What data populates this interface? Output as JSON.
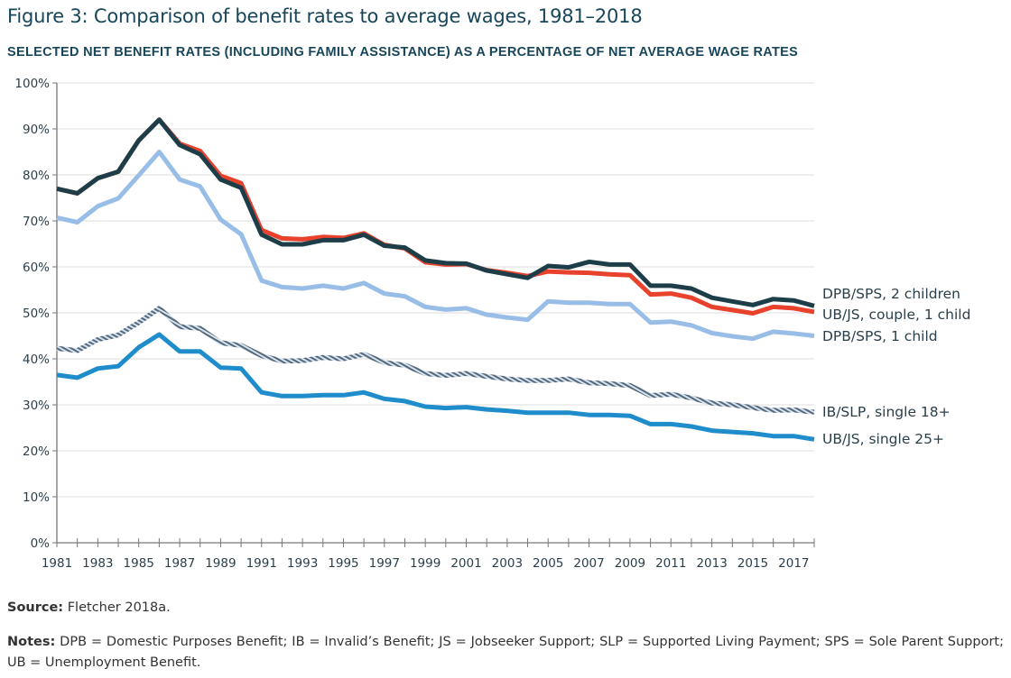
{
  "chart_data": {
    "type": "line",
    "title": "Figure 3: Comparison of benefit rates to average wages, 1981–2018",
    "subtitle": "SELECTED NET BENEFIT RATES (INCLUDING FAMILY ASSISTANCE) AS A PERCENTAGE OF NET AVERAGE WAGE RATES",
    "xlabel": "",
    "ylabel": "",
    "x": [
      1981,
      1982,
      1983,
      1984,
      1985,
      1986,
      1987,
      1988,
      1989,
      1990,
      1991,
      1992,
      1993,
      1994,
      1995,
      1996,
      1997,
      1998,
      1999,
      2000,
      2001,
      2002,
      2003,
      2004,
      2005,
      2006,
      2007,
      2008,
      2009,
      2010,
      2011,
      2012,
      2013,
      2014,
      2015,
      2016,
      2017,
      2018
    ],
    "xlim": [
      1981,
      2018
    ],
    "ylim": [
      0,
      100
    ],
    "x_tick_labels": [
      "1981",
      "1983",
      "1985",
      "1987",
      "1989",
      "1991",
      "1993",
      "1995",
      "1997",
      "1999",
      "2001",
      "2003",
      "2005",
      "2007",
      "2009",
      "2011",
      "2013",
      "2015",
      "2017"
    ],
    "y_tick_labels": [
      "0%",
      "10%",
      "20%",
      "30%",
      "40%",
      "50%",
      "60%",
      "70%",
      "80%",
      "90%",
      "100%"
    ],
    "grid": true,
    "legend": "right-inline",
    "series": [
      {
        "name": "UB/JS, couple, 1 child",
        "color": "#e8412c",
        "style": "solid",
        "values": [
          77.0,
          76.0,
          79.3,
          80.7,
          87.5,
          92.0,
          86.8,
          85.2,
          79.8,
          78.2,
          68.0,
          66.2,
          66.0,
          66.5,
          66.3,
          67.3,
          64.8,
          64.0,
          61.0,
          60.5,
          60.6,
          59.3,
          58.7,
          58.0,
          59.0,
          58.8,
          58.7,
          58.4,
          58.2,
          54.0,
          54.2,
          53.3,
          51.3,
          50.6,
          49.9,
          51.3,
          51.0,
          50.2
        ]
      },
      {
        "name": "DPB/SPS, 2 children",
        "color": "#1d3e48",
        "style": "solid",
        "values": [
          77.0,
          76.0,
          79.3,
          80.7,
          87.5,
          92.0,
          86.5,
          84.5,
          79.0,
          77.2,
          67.0,
          64.9,
          64.9,
          65.8,
          65.8,
          67.0,
          64.6,
          64.2,
          61.4,
          60.8,
          60.7,
          59.2,
          58.4,
          57.6,
          60.2,
          59.9,
          61.1,
          60.5,
          60.5,
          55.9,
          55.9,
          55.3,
          53.3,
          52.5,
          51.7,
          53.0,
          52.7,
          51.5
        ]
      },
      {
        "name": "DPB/SPS, 1 child",
        "color": "#98bde6",
        "style": "solid",
        "values": [
          70.7,
          69.7,
          73.2,
          74.9,
          79.9,
          85.0,
          79.0,
          77.5,
          70.3,
          67.1,
          57.0,
          55.6,
          55.3,
          55.9,
          55.3,
          56.5,
          54.2,
          53.6,
          51.3,
          50.7,
          51.0,
          49.6,
          49.0,
          48.5,
          52.5,
          52.2,
          52.2,
          51.9,
          51.9,
          47.9,
          48.1,
          47.3,
          45.6,
          44.9,
          44.4,
          45.9,
          45.5,
          45.0
        ]
      },
      {
        "name": "IB/SLP, single 18+",
        "color": "#5a6b7a",
        "style": "hatched",
        "values": [
          42.3,
          41.8,
          44.2,
          45.2,
          47.9,
          51.0,
          47.0,
          46.6,
          43.5,
          42.9,
          40.7,
          39.5,
          39.6,
          40.3,
          40.0,
          41.0,
          39.2,
          38.6,
          36.8,
          36.4,
          36.8,
          36.2,
          35.6,
          35.3,
          35.3,
          35.6,
          34.8,
          34.6,
          34.2,
          32.0,
          32.3,
          31.5,
          30.4,
          30.0,
          29.4,
          28.8,
          28.9,
          28.4
        ]
      },
      {
        "name": "UB/JS, single 25+",
        "color": "#1f8ccc",
        "style": "solid",
        "values": [
          36.5,
          35.9,
          37.9,
          38.4,
          42.5,
          45.3,
          41.6,
          41.6,
          38.1,
          37.9,
          32.7,
          31.9,
          31.9,
          32.1,
          32.1,
          32.7,
          31.3,
          30.8,
          29.6,
          29.3,
          29.5,
          29.0,
          28.7,
          28.3,
          28.3,
          28.3,
          27.8,
          27.8,
          27.6,
          25.8,
          25.8,
          25.3,
          24.4,
          24.1,
          23.8,
          23.2,
          23.2,
          22.5
        ]
      }
    ]
  },
  "footer": {
    "source_label": "Source:",
    "source_text": " Fletcher 2018a.",
    "notes_label": "Notes:",
    "notes_text": " DPB = Domestic Purposes Benefit; IB = Invalid’s Benefit; JS = Jobseeker Support; SLP = Supported Living Payment; SPS = Sole Parent Support; UB = Unemployment Benefit."
  }
}
